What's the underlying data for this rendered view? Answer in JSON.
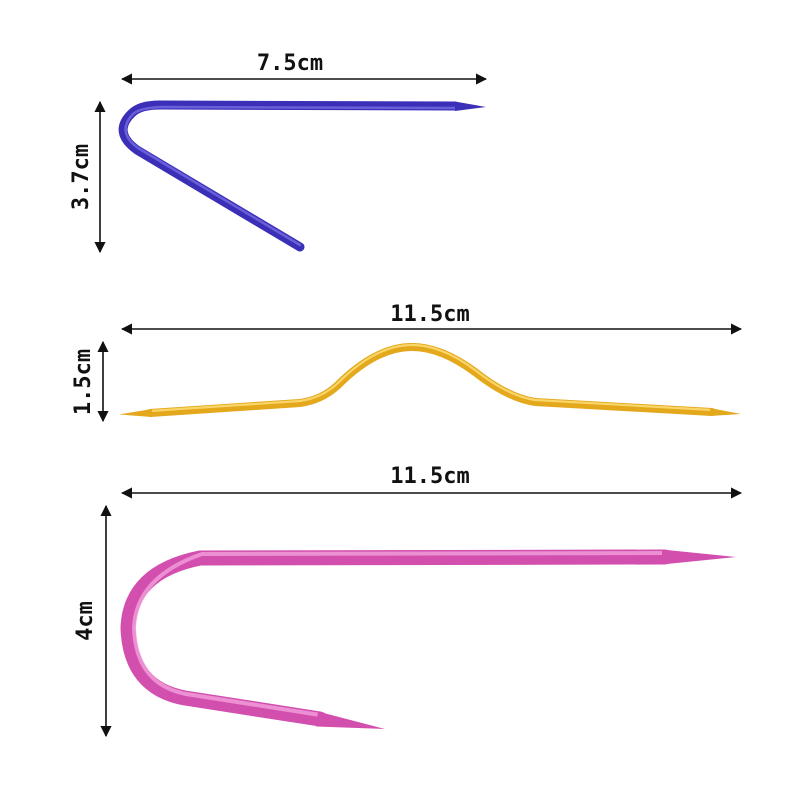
{
  "needles": [
    {
      "width_label": "7.5cm",
      "height_label": "3.7cm",
      "color": "#3b2fb8",
      "highlight": "#7d74e6",
      "shadow": "#1d1670",
      "shape": "v-hook"
    },
    {
      "width_label": "11.5cm",
      "height_label": "1.5cm",
      "color": "#e3a81c",
      "highlight": "#ffe07a",
      "shadow": "#a4700a",
      "shape": "bump"
    },
    {
      "width_label": "11.5cm",
      "height_label": "4cm",
      "color": "#d24fae",
      "highlight": "#f4a6df",
      "shadow": "#8e1f73",
      "shape": "u-hook"
    }
  ]
}
